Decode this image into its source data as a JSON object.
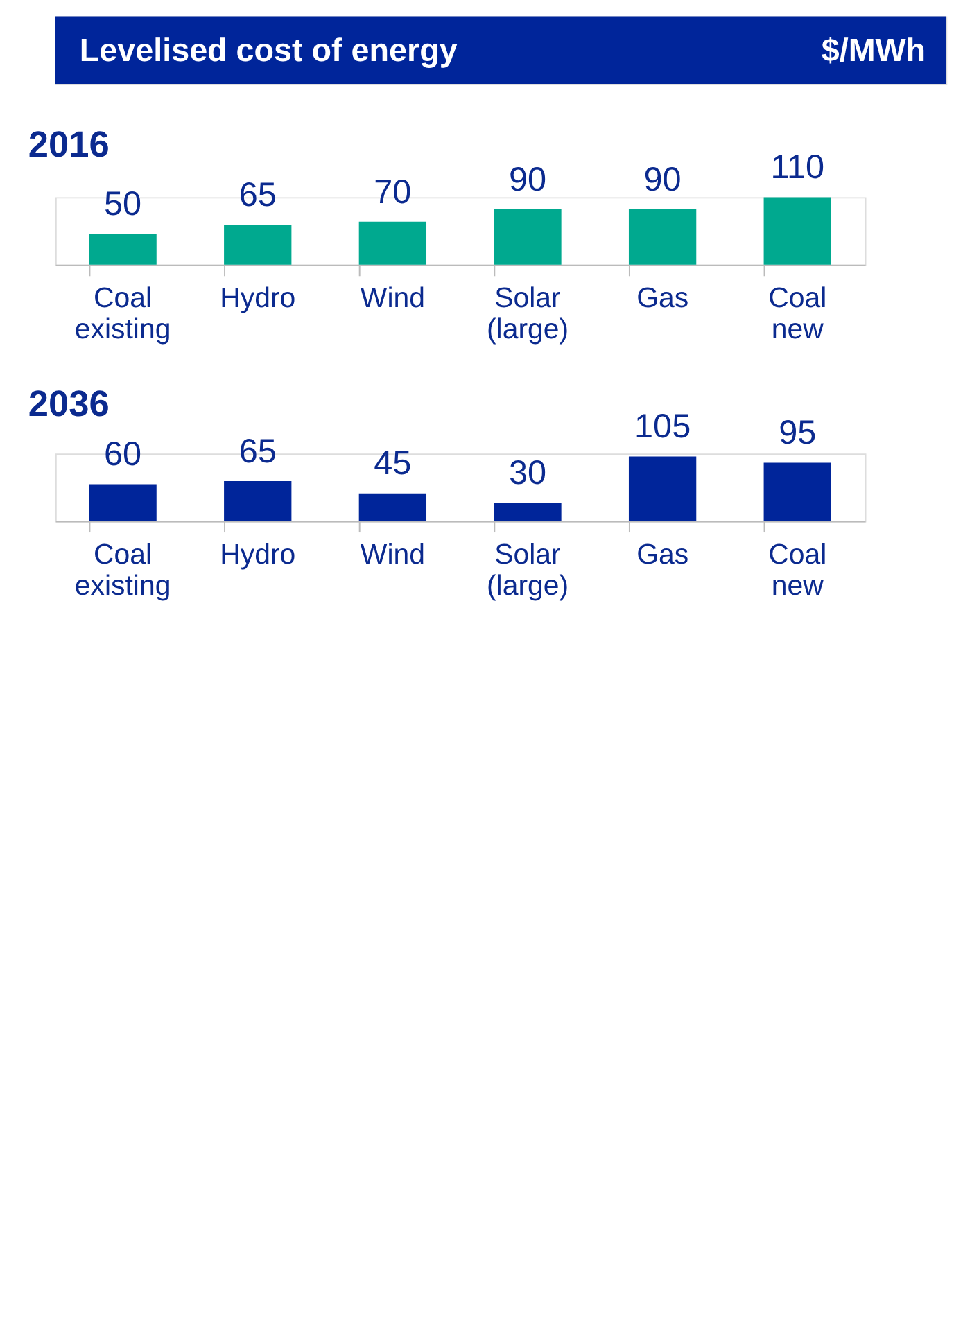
{
  "chart_data": [
    {
      "type": "bar",
      "title": "Levelised cost of energy",
      "ylabel": "$/MWh",
      "subtitle": "2016",
      "categories": [
        "Coal existing",
        "Hydro",
        "Wind",
        "Solar (large)",
        "Gas",
        "Coal new"
      ],
      "values": [
        50,
        65,
        70,
        90,
        90,
        110
      ],
      "color": "#00a98f",
      "data_labels": true,
      "tick_labels": "x"
    },
    {
      "type": "bar",
      "title": "2036",
      "categories": [
        "Coal existing",
        "Hydro",
        "Wind",
        "Solar (large)",
        "Gas",
        "Coal new"
      ],
      "values": [
        60,
        65,
        45,
        30,
        105,
        95
      ],
      "color": "#00259a",
      "data_labels": true,
      "tick_labels": "x"
    }
  ]
}
